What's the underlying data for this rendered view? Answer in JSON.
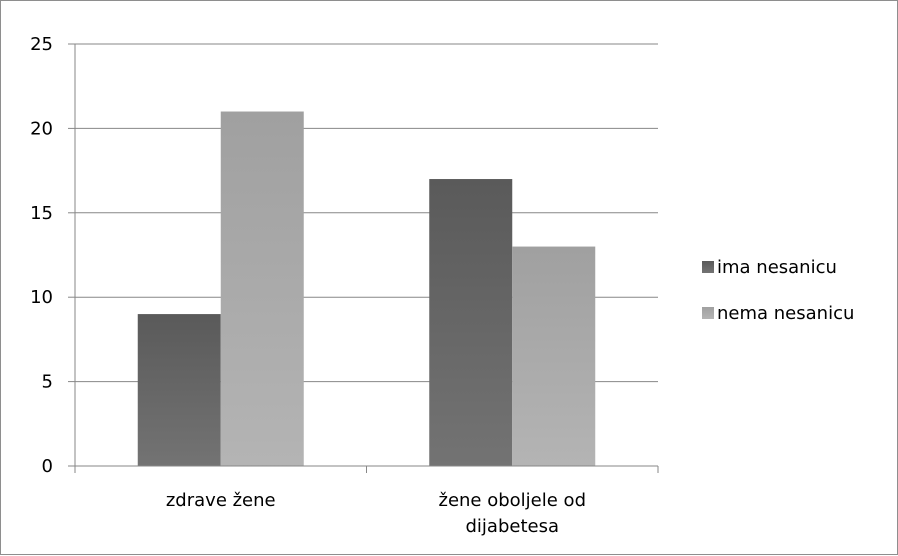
{
  "chart_data": {
    "type": "bar",
    "categories": [
      [
        "zdrave žene"
      ],
      [
        "žene oboljele od",
        "dijabetesa"
      ]
    ],
    "series": [
      {
        "name": "ima nesanicu",
        "values": [
          9,
          17
        ],
        "color": "#606060"
      },
      {
        "name": "nema nesanicu",
        "values": [
          21,
          13
        ],
        "color": "#aaaaaa"
      }
    ],
    "ylim": [
      0,
      25
    ],
    "yticks": [
      0,
      5,
      10,
      15,
      20,
      25
    ],
    "grid": true,
    "legend_position": "right",
    "title": "",
    "xlabel": "",
    "ylabel": ""
  }
}
